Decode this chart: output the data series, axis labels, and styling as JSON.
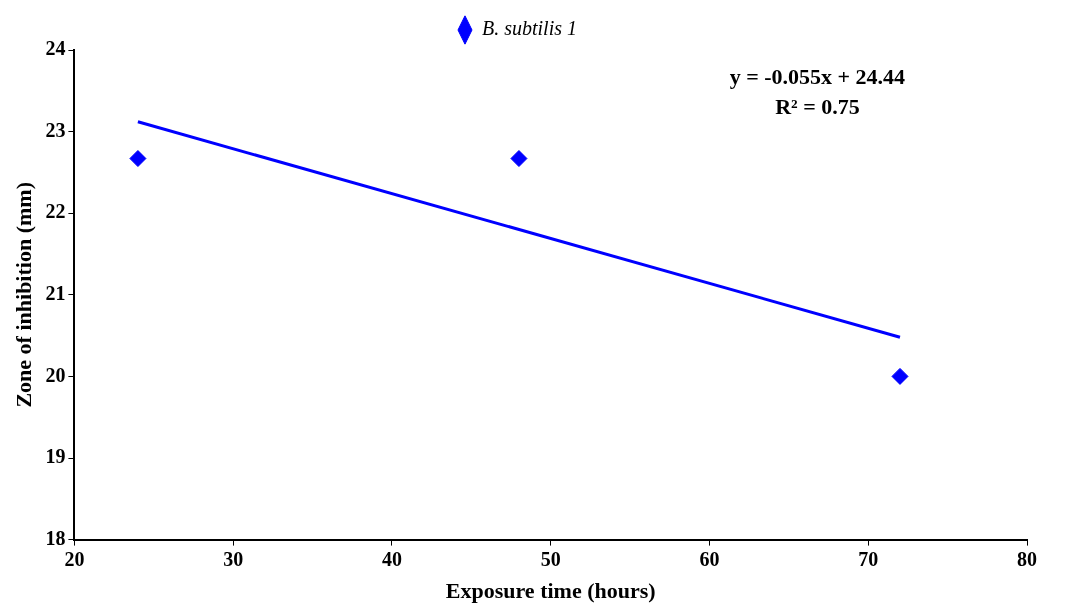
{
  "chart_data": {
    "type": "scatter",
    "xlabel": "Exposure time (hours)",
    "ylabel": "Zone of inhibition (mm)",
    "series": [
      {
        "name": "B. subtilis 1",
        "color": "#0000ff",
        "x": [
          24,
          48,
          72
        ],
        "values": [
          22.67,
          22.67,
          20
        ]
      },
      {
        "type": "line",
        "color": "#0000ff",
        "x": [
          24,
          72
        ],
        "values": [
          23.12,
          20.48
        ],
        "marker": "none"
      }
    ],
    "annotations": [
      "y = -0.055x + 24.44",
      "R² = 0.75"
    ],
    "xlim": [
      20,
      80
    ],
    "xticks": [
      20,
      30,
      40,
      50,
      60,
      70,
      80
    ],
    "ylim": [
      18,
      24
    ],
    "yticks": [
      18,
      19,
      20,
      21,
      22,
      23,
      24
    ],
    "grid": false,
    "legend": "top",
    "marker": "diamond"
  }
}
